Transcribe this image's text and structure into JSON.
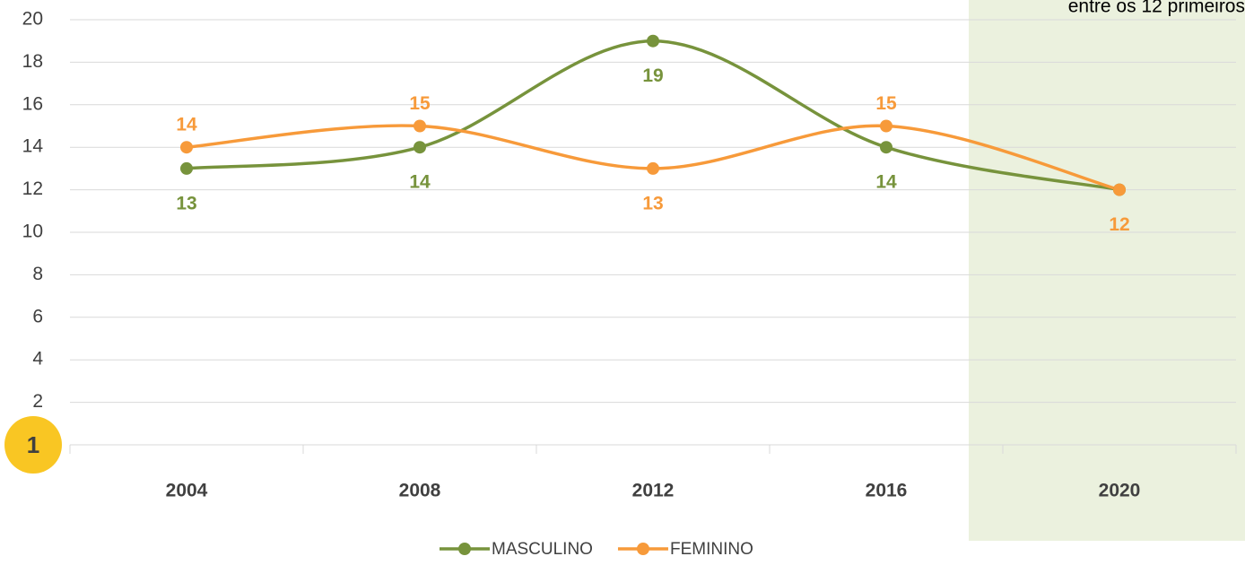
{
  "chart_data": {
    "type": "line",
    "annotation": "entre os 12 primeiros",
    "badge": "1",
    "categories": [
      "2004",
      "2008",
      "2012",
      "2016",
      "2020"
    ],
    "series": [
      {
        "name": "MASCULINO",
        "color": "#77933c",
        "values": [
          13,
          14,
          19,
          14,
          12
        ]
      },
      {
        "name": "FEMININO",
        "color": "#f79a3a",
        "values": [
          14,
          15,
          13,
          15,
          12
        ]
      }
    ],
    "ylim": [
      0,
      20
    ],
    "yticks": [
      2,
      4,
      6,
      8,
      10,
      12,
      14,
      16,
      18,
      20
    ],
    "grid": true,
    "smooth": true,
    "legend": "bottom",
    "highlight_color": "#ebf1de"
  }
}
